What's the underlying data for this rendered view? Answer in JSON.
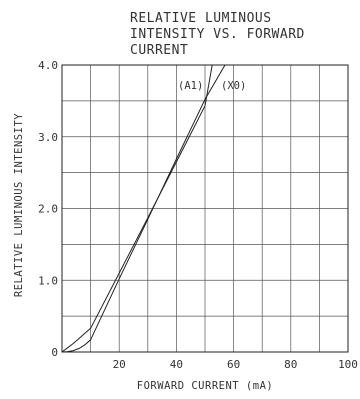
{
  "chart_data": {
    "type": "line",
    "title_lines": [
      "RELATIVE  LUMINOUS",
      "INTENSITY  VS.  FORWARD",
      "CURRENT"
    ],
    "xlabel": "FORWARD  CURRENT  (mA)",
    "ylabel": "RELATIVE  LUMINOUS  INTENSITY",
    "xlim": [
      0,
      100
    ],
    "ylim": [
      0,
      4.0
    ],
    "x_ticks": [
      20,
      40,
      60,
      80,
      100
    ],
    "x_tick_labels": [
      "20",
      "40",
      "60",
      "80",
      "100"
    ],
    "y_ticks": [
      0,
      1.0,
      2.0,
      3.0,
      4.0
    ],
    "y_tick_labels": [
      "0",
      "1.0",
      "2.0",
      "3.0",
      "4.0"
    ],
    "grid": true,
    "grid_x_step": 10,
    "grid_y_step": 0.5,
    "series": [
      {
        "name": "(A1)",
        "x": [
          0,
          2,
          4,
          6,
          8,
          10,
          20,
          30,
          40,
          50,
          52.5
        ],
        "y": [
          0,
          0.06,
          0.12,
          0.19,
          0.26,
          0.33,
          1.1,
          1.87,
          2.65,
          3.43,
          4.0
        ]
      },
      {
        "name": "(X0)",
        "x": [
          0,
          2,
          4,
          6,
          8,
          10,
          20,
          30,
          40,
          50,
          57
        ],
        "y": [
          0,
          0.005,
          0.02,
          0.05,
          0.1,
          0.17,
          1.02,
          1.85,
          2.69,
          3.52,
          4.0
        ]
      }
    ]
  }
}
